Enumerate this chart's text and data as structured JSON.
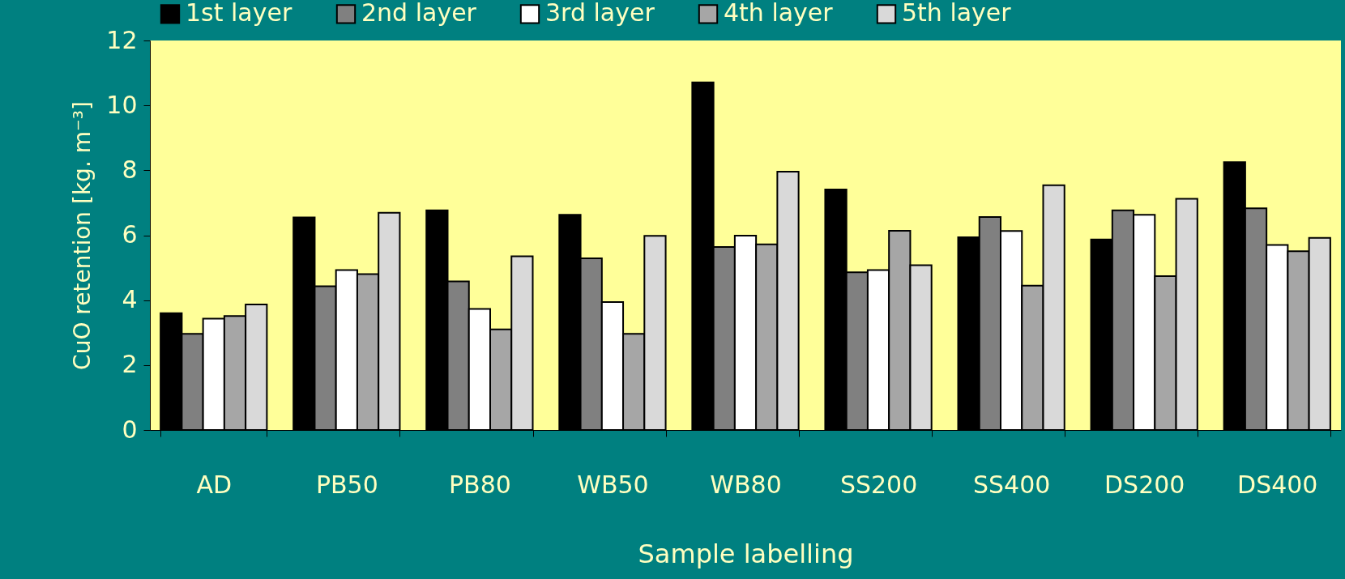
{
  "chart_data": {
    "type": "bar",
    "xlabel": "Sample labelling",
    "ylabel": "CuO retention [kg. m⁻³]",
    "categories": [
      "AD",
      "PB50",
      "PB80",
      "WB50",
      "WB80",
      "SS200",
      "SS400",
      "DS200",
      "DS400"
    ],
    "series": [
      {
        "name": "1st layer",
        "color": "#000000",
        "values": [
          3.6,
          6.55,
          6.77,
          6.63,
          10.71,
          7.41,
          5.94,
          5.87,
          8.25
        ]
      },
      {
        "name": "2nd layer",
        "color": "#808080",
        "values": [
          2.96,
          4.43,
          4.58,
          5.29,
          5.64,
          4.86,
          6.56,
          6.77,
          6.83
        ]
      },
      {
        "name": "3rd layer",
        "color": "#ffffff",
        "values": [
          3.43,
          4.93,
          3.73,
          3.94,
          5.99,
          4.93,
          6.13,
          6.63,
          5.7
        ]
      },
      {
        "name": "4th layer",
        "color": "#a6a6a6",
        "values": [
          3.51,
          4.8,
          3.1,
          2.96,
          5.72,
          6.14,
          4.45,
          4.74,
          5.51
        ]
      },
      {
        "name": "5th layer",
        "color": "#d9d9d9",
        "values": [
          3.87,
          6.69,
          5.35,
          5.98,
          7.96,
          5.08,
          7.54,
          7.12,
          5.92
        ]
      }
    ],
    "ylim": [
      0,
      12
    ],
    "yticks": [
      0,
      2,
      4,
      6,
      8,
      10,
      12
    ],
    "grid": false,
    "legend": "top"
  }
}
